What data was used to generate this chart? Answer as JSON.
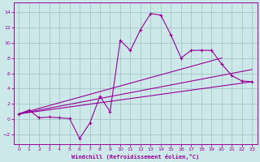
{
  "xlabel": "Windchill (Refroidissement éolien,°C)",
  "bg_color": "#cce8e8",
  "grid_color": "#aacccc",
  "line_color": "#990099",
  "xlim": [
    -0.5,
    23.5
  ],
  "ylim": [
    -3.2,
    15.2
  ],
  "yticks": [
    -2,
    0,
    2,
    4,
    6,
    8,
    10,
    12,
    14
  ],
  "xticks": [
    0,
    1,
    2,
    3,
    4,
    5,
    6,
    7,
    8,
    9,
    10,
    11,
    12,
    13,
    14,
    15,
    16,
    17,
    18,
    19,
    20,
    21,
    22,
    23
  ],
  "curve_x": [
    0,
    1,
    2,
    3,
    4,
    5,
    6,
    7,
    8,
    9,
    10,
    11,
    12,
    13,
    14,
    15,
    16,
    17,
    18,
    19,
    20,
    21,
    22,
    23
  ],
  "curve_y": [
    0.7,
    1.2,
    0.2,
    0.3,
    0.2,
    0.1,
    -2.5,
    -0.5,
    3.0,
    1.0,
    10.3,
    9.0,
    11.7,
    13.8,
    13.6,
    11.0,
    8.0,
    9.0,
    9.0,
    9.0,
    7.2,
    5.7,
    5.0,
    4.9
  ],
  "line1_x": [
    0,
    23
  ],
  "line1_y": [
    0.7,
    4.9
  ],
  "line2_x": [
    0,
    23
  ],
  "line2_y": [
    0.7,
    6.5
  ],
  "line3_x": [
    0,
    20
  ],
  "line3_y": [
    0.7,
    8.0
  ]
}
